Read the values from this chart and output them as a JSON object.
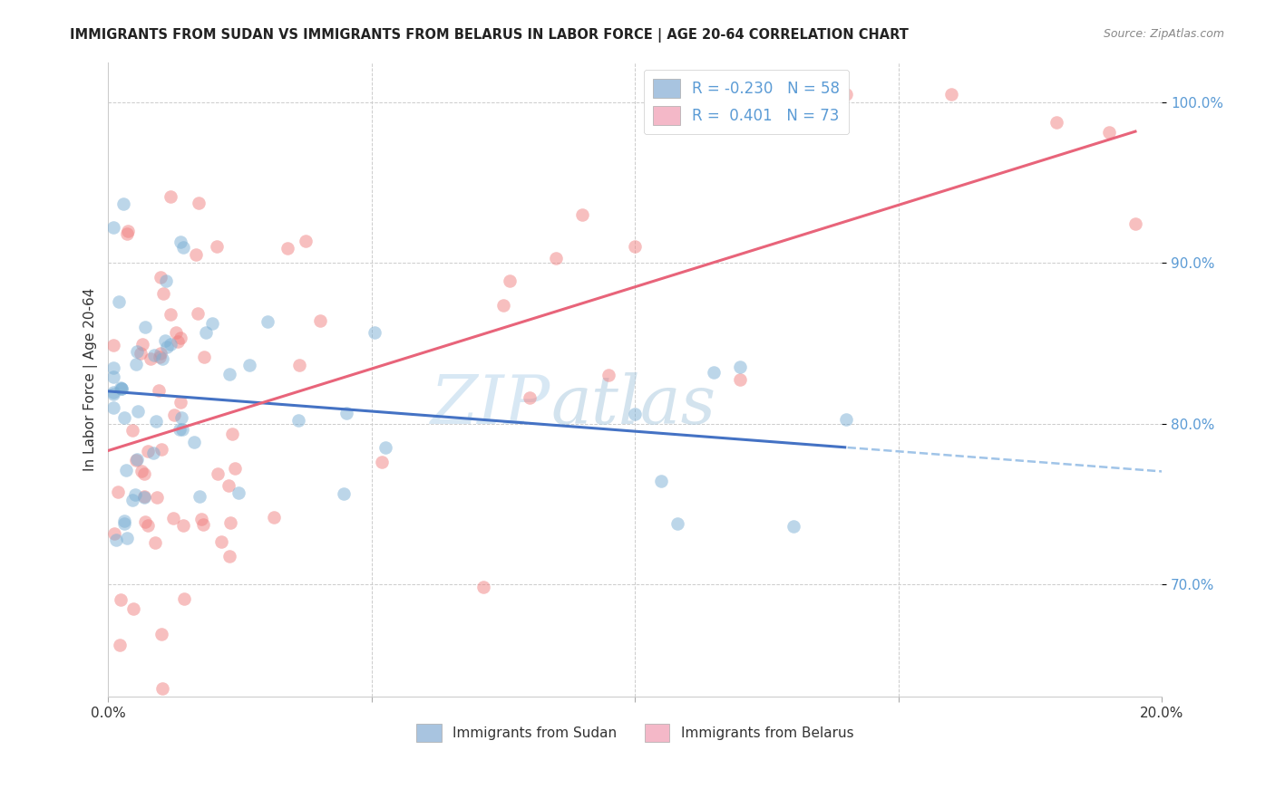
{
  "title": "IMMIGRANTS FROM SUDAN VS IMMIGRANTS FROM BELARUS IN LABOR FORCE | AGE 20-64 CORRELATION CHART",
  "source": "Source: ZipAtlas.com",
  "ylabel": "In Labor Force | Age 20-64",
  "xlim": [
    0.0,
    0.2
  ],
  "ylim": [
    0.63,
    1.025
  ],
  "sudan_color": "#7bafd4",
  "belarus_color": "#f08080",
  "sudan_line_color": "#4472c4",
  "sudan_dash_color": "#a0c4e8",
  "belarus_line_color": "#e8647a",
  "sudan_R": -0.23,
  "sudan_N": 58,
  "belarus_R": 0.401,
  "belarus_N": 73,
  "watermark_zip": "ZIP",
  "watermark_atlas": "atlas",
  "background_color": "#ffffff",
  "grid_color": "#cccccc",
  "axis_label_color": "#5b9bd5",
  "legend_box_sudan": "#a8c4e0",
  "legend_box_belarus": "#f4b8c8",
  "sudan_intercept": 0.836,
  "sudan_slope": -0.48,
  "belarus_intercept": 0.772,
  "belarus_slope": 1.18
}
